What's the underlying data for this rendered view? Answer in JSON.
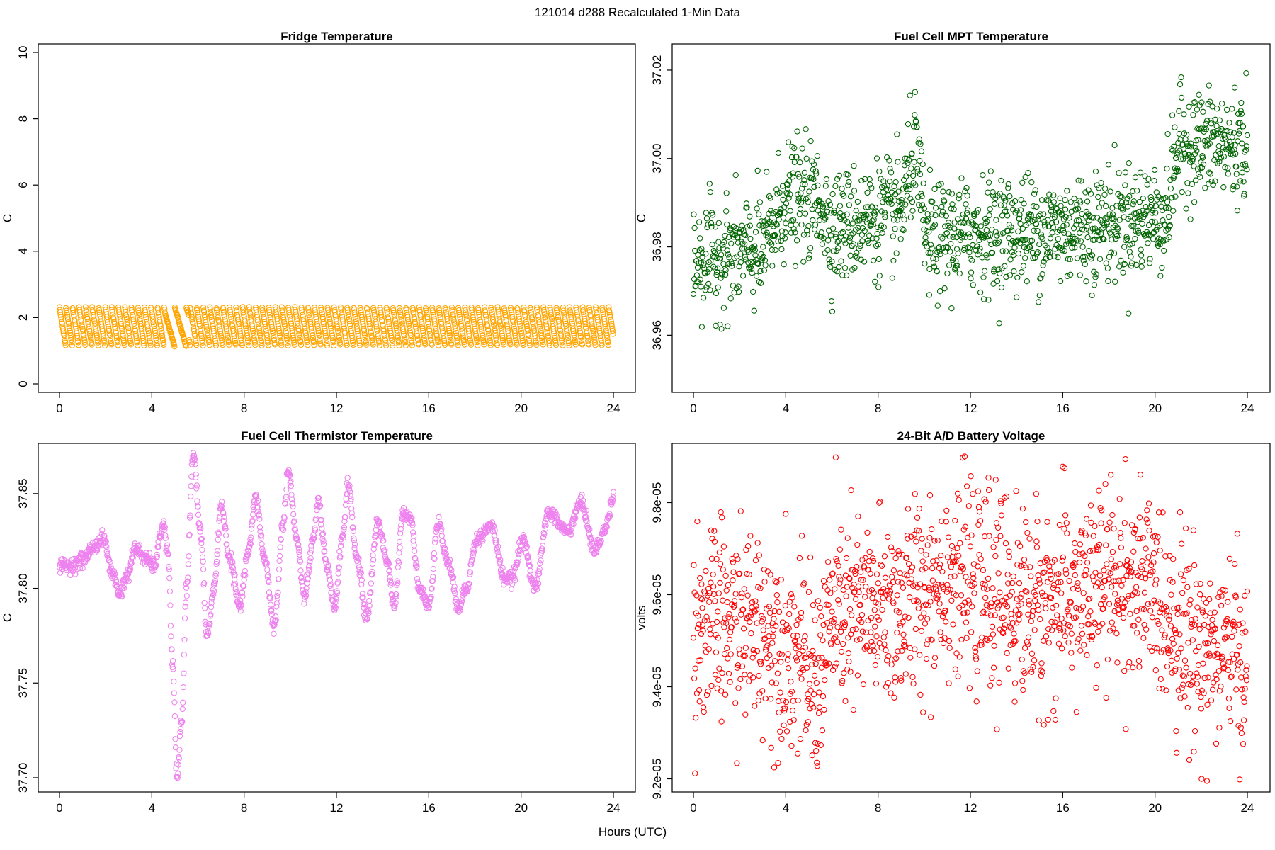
{
  "page": {
    "title": "121014   d288   Recalculated 1-Min Data",
    "xlabel": "Hours (UTC)"
  },
  "chart_data": [
    {
      "type": "scatter",
      "title": "Fridge Temperature",
      "ylabel": "C",
      "xlabel": "Hours (UTC)",
      "xlim": [
        0,
        24
      ],
      "ylim": [
        0,
        10
      ],
      "xticks": [
        "0",
        "4",
        "8",
        "12",
        "16",
        "20",
        "24"
      ],
      "yticks": [
        "0",
        "2",
        "4",
        "6",
        "8",
        "10"
      ],
      "color": "#ffa500",
      "legend": "none",
      "grid": false,
      "series": [
        {
          "pattern": "sawtooth",
          "points_per_minute": 1,
          "low": 1.1,
          "high": 2.3,
          "cycle_minutes": 17,
          "anomaly_window_hours": [
            4.6,
            5.6
          ],
          "x_range": [
            0,
            24
          ]
        }
      ]
    },
    {
      "type": "scatter",
      "title": "Fuel Cell MPT Temperature",
      "ylabel": "C",
      "xlabel": "Hours (UTC)",
      "xlim": [
        0,
        24
      ],
      "ylim": [
        36.949,
        37.024
      ],
      "xticks": [
        "0",
        "4",
        "8",
        "12",
        "16",
        "20",
        "24"
      ],
      "yticks": [
        "36.96",
        "36.98",
        "37.00",
        "37.02"
      ],
      "color": "#006400",
      "legend": "none",
      "grid": false,
      "series": [
        {
          "pattern": "noisy-level",
          "sample_every_minutes": 1,
          "levels": [
            [
              0,
              36.977
            ],
            [
              3.0,
              36.979
            ],
            [
              4.0,
              36.991
            ],
            [
              5.5,
              36.99
            ],
            [
              6.0,
              36.984
            ],
            [
              9.0,
              36.988
            ],
            [
              9.6,
              37.002
            ],
            [
              10.1,
              36.981
            ],
            [
              12.0,
              36.983
            ],
            [
              16.0,
              36.984
            ],
            [
              20.5,
              36.987
            ],
            [
              21.0,
              37.003
            ],
            [
              24.0,
              37.003
            ]
          ],
          "noise_sd": 0.0062,
          "x_range": [
            0,
            24
          ]
        }
      ]
    },
    {
      "type": "scatter",
      "title": "Fuel Cell Thermistor Temperature",
      "ylabel": "C",
      "xlabel": "Hours (UTC)",
      "xlim": [
        0,
        24
      ],
      "ylim": [
        37.697,
        37.872
      ],
      "xticks": [
        "0",
        "4",
        "8",
        "12",
        "16",
        "20",
        "24"
      ],
      "yticks": [
        "37.70",
        "37.75",
        "37.80",
        "37.85"
      ],
      "color": "#ee82ee",
      "legend": "none",
      "grid": false,
      "series": [
        {
          "pattern": "oscillating-curve",
          "points_per_minute": 1,
          "anchors": [
            [
              0,
              37.812
            ],
            [
              0.5,
              37.812
            ],
            [
              1.0,
              37.815
            ],
            [
              1.5,
              37.822
            ],
            [
              1.9,
              37.826
            ],
            [
              2.3,
              37.808
            ],
            [
              2.6,
              37.797
            ],
            [
              2.9,
              37.806
            ],
            [
              3.3,
              37.821
            ],
            [
              3.8,
              37.815
            ],
            [
              4.1,
              37.812
            ],
            [
              4.5,
              37.834
            ],
            [
              4.7,
              37.818
            ],
            [
              4.9,
              37.76
            ],
            [
              5.1,
              37.7
            ],
            [
              5.3,
              37.73
            ],
            [
              5.5,
              37.8
            ],
            [
              5.8,
              37.872
            ],
            [
              6.1,
              37.83
            ],
            [
              6.4,
              37.775
            ],
            [
              6.7,
              37.8
            ],
            [
              7.0,
              37.843
            ],
            [
              7.4,
              37.815
            ],
            [
              7.8,
              37.79
            ],
            [
              8.2,
              37.82
            ],
            [
              8.5,
              37.848
            ],
            [
              8.9,
              37.815
            ],
            [
              9.3,
              37.78
            ],
            [
              9.7,
              37.835
            ],
            [
              9.9,
              37.862
            ],
            [
              10.3,
              37.825
            ],
            [
              10.6,
              37.795
            ],
            [
              11.0,
              37.825
            ],
            [
              11.2,
              37.846
            ],
            [
              11.6,
              37.81
            ],
            [
              11.9,
              37.79
            ],
            [
              12.3,
              37.83
            ],
            [
              12.5,
              37.855
            ],
            [
              12.9,
              37.815
            ],
            [
              13.3,
              37.785
            ],
            [
              13.8,
              37.835
            ],
            [
              14.2,
              37.815
            ],
            [
              14.5,
              37.79
            ],
            [
              14.9,
              37.84
            ],
            [
              15.2,
              37.838
            ],
            [
              15.6,
              37.8
            ],
            [
              16.0,
              37.79
            ],
            [
              16.4,
              37.835
            ],
            [
              16.8,
              37.815
            ],
            [
              17.3,
              37.79
            ],
            [
              17.6,
              37.8
            ],
            [
              18.1,
              37.826
            ],
            [
              18.7,
              37.833
            ],
            [
              19.3,
              37.805
            ],
            [
              19.6,
              37.805
            ],
            [
              20.1,
              37.826
            ],
            [
              20.6,
              37.8
            ],
            [
              21.2,
              37.84
            ],
            [
              22.0,
              37.83
            ],
            [
              22.6,
              37.845
            ],
            [
              23.2,
              37.82
            ],
            [
              23.6,
              37.83
            ],
            [
              24.0,
              37.848
            ]
          ],
          "x_range": [
            0,
            24
          ]
        }
      ]
    },
    {
      "type": "scatter",
      "title": "24-Bit A/D Battery Voltage",
      "ylabel": "volts",
      "xlabel": "Hours (UTC)",
      "xlim": [
        0,
        24
      ],
      "ylim": [
        9.19e-05,
        9.91e-05
      ],
      "xticks": [
        "0",
        "4",
        "8",
        "12",
        "16",
        "20",
        "24"
      ],
      "yticks": [
        "9.2e-05",
        "9.4e-05",
        "9.6e-05",
        "9.8e-05"
      ],
      "color": "#ff0000",
      "legend": "none",
      "grid": false,
      "series": [
        {
          "pattern": "noisy-level",
          "sample_every_minutes": 1,
          "levels": [
            [
              0,
              9.54e-05
            ],
            [
              3.0,
              9.53e-05
            ],
            [
              4.5,
              9.47e-05
            ],
            [
              5.3,
              9.4e-05
            ],
            [
              6.0,
              9.55e-05
            ],
            [
              9.0,
              9.57e-05
            ],
            [
              11.0,
              9.65e-05
            ],
            [
              12.0,
              9.62e-05
            ],
            [
              15.0,
              9.57e-05
            ],
            [
              18.5,
              9.63e-05
            ],
            [
              20.0,
              9.6e-05
            ],
            [
              21.5,
              9.5e-05
            ],
            [
              24.0,
              9.45e-05
            ]
          ],
          "noise_sd": 1.05e-06,
          "x_range": [
            0,
            24
          ]
        }
      ]
    }
  ]
}
